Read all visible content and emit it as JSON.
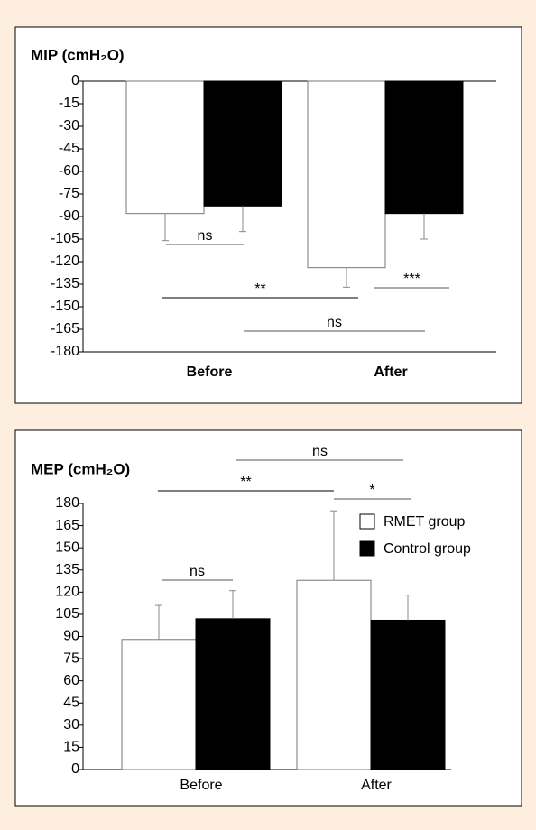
{
  "chart_data": [
    {
      "type": "bar",
      "title": "MIP (cmH₂O)",
      "categories": [
        "Before",
        "After"
      ],
      "series": [
        {
          "color": "#ffffff",
          "values": [
            -88,
            -124
          ],
          "errors": [
            18,
            13
          ]
        },
        {
          "color": "#000000",
          "values": [
            -83,
            -88
          ],
          "errors": [
            17,
            17
          ]
        }
      ],
      "ylim": [
        -180,
        0
      ],
      "yticks": [
        0,
        -15,
        -30,
        -45,
        -60,
        -75,
        -90,
        -105,
        -120,
        -135,
        -150,
        -165,
        -180
      ],
      "annotations": [
        {
          "text": "ns"
        },
        {
          "text": "**"
        },
        {
          "text": "***"
        },
        {
          "text": "ns"
        }
      ]
    },
    {
      "type": "bar",
      "title": "MEP (cmH₂O)",
      "categories": [
        "Before",
        "After"
      ],
      "series": [
        {
          "name": "RMET group",
          "color": "#ffffff",
          "values": [
            88,
            128
          ],
          "errors": [
            23,
            47
          ]
        },
        {
          "name": "Control group",
          "color": "#000000",
          "values": [
            102,
            101
          ],
          "errors": [
            19,
            17
          ]
        }
      ],
      "ylim": [
        0,
        180
      ],
      "yticks": [
        0,
        15,
        30,
        45,
        60,
        75,
        90,
        105,
        120,
        135,
        150,
        165,
        180
      ],
      "legend": "upper right",
      "annotations": [
        {
          "text": "ns"
        },
        {
          "text": "**"
        },
        {
          "text": "*"
        },
        {
          "text": "ns"
        }
      ]
    }
  ]
}
